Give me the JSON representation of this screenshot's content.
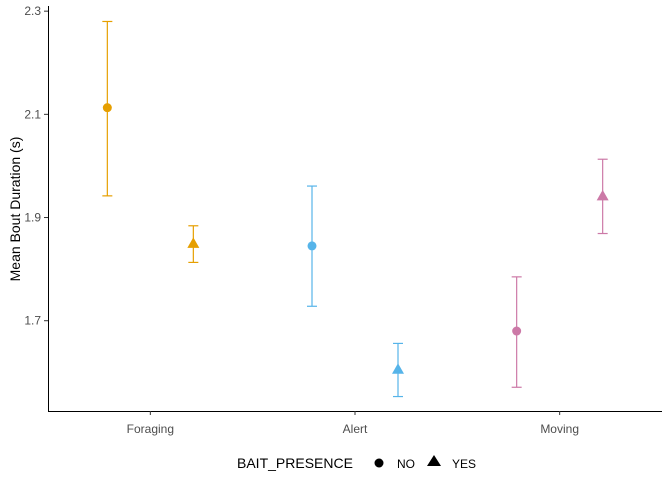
{
  "chart_data": {
    "type": "scatter",
    "xlabel": "",
    "ylabel": "Mean Bout Duration (s)",
    "categories": [
      "Foraging",
      "Alert",
      "Moving"
    ],
    "ylim": [
      1.525,
      2.31
    ],
    "yticks": [
      1.7,
      1.9,
      2.1,
      2.3
    ],
    "ytick_labels": [
      "1.7",
      "1.9",
      "2.1",
      "2.3"
    ],
    "grid": false,
    "legend": {
      "title": "BAIT_PRESENCE",
      "position": "bottom",
      "entries": [
        {
          "label": "NO",
          "shape": "circle"
        },
        {
          "label": "YES",
          "shape": "triangle"
        }
      ]
    },
    "category_colors": {
      "Foraging": "#E69F00",
      "Alert": "#56B4E9",
      "Moving": "#CC79A7"
    },
    "points": [
      {
        "category": "Foraging",
        "group": "NO",
        "mean": 2.113,
        "lower": 1.942,
        "upper": 2.28
      },
      {
        "category": "Foraging",
        "group": "YES",
        "mean": 1.85,
        "lower": 1.813,
        "upper": 1.884
      },
      {
        "category": "Alert",
        "group": "NO",
        "mean": 1.845,
        "lower": 1.728,
        "upper": 1.961
      },
      {
        "category": "Alert",
        "group": "YES",
        "mean": 1.606,
        "lower": 1.553,
        "upper": 1.656
      },
      {
        "category": "Moving",
        "group": "NO",
        "mean": 1.68,
        "lower": 1.571,
        "upper": 1.785
      },
      {
        "category": "Moving",
        "group": "YES",
        "mean": 1.942,
        "lower": 1.869,
        "upper": 2.013
      }
    ]
  }
}
